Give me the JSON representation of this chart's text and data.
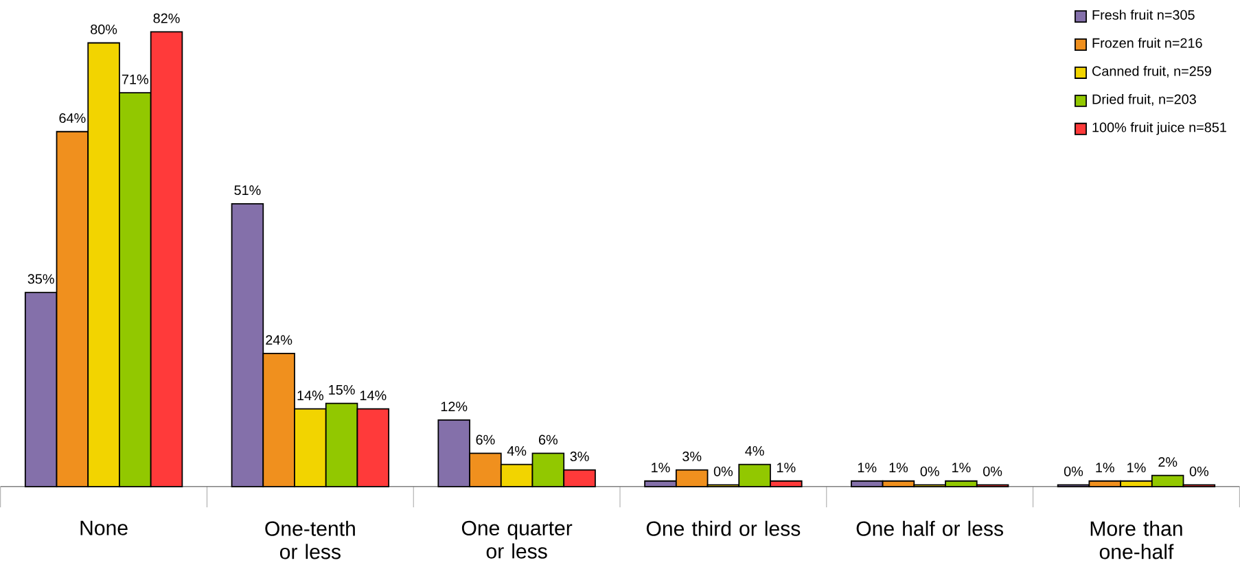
{
  "chart_data": {
    "type": "bar",
    "relative": false,
    "categories": [
      "None",
      "One-tenth or less",
      "One quarter or less",
      "One third or less",
      "One half or less",
      "More than one-half"
    ],
    "series": [
      {
        "name": "Fresh fruit n=305",
        "color": "#8470aa",
        "values": [
          35,
          51,
          12,
          1,
          1,
          0.3
        ],
        "value_labels": [
          "35%",
          "51%",
          "12%",
          "1%",
          "1%",
          "0%"
        ]
      },
      {
        "name": "Frozen fruit n=216",
        "color": "#f0901e",
        "values": [
          64,
          24,
          6,
          3,
          1,
          1
        ],
        "value_labels": [
          "64%",
          "24%",
          "6%",
          "3%",
          "1%",
          "1%"
        ]
      },
      {
        "name": "Canned fruit, n=259",
        "color": "#f2d400",
        "values": [
          80,
          14,
          4,
          0.3,
          0.3,
          1
        ],
        "value_labels": [
          "80%",
          "14%",
          "4%",
          "0%",
          "0%",
          "1%"
        ]
      },
      {
        "name": "Dried fruit, n=203",
        "color": "#92c800",
        "values": [
          71,
          15,
          6,
          4,
          1,
          2
        ],
        "value_labels": [
          "71%",
          "15%",
          "6%",
          "4%",
          "1%",
          "2%"
        ]
      },
      {
        "name": "100% fruit juice n=851",
        "color": "#ff3a3a",
        "values": [
          82,
          14,
          3,
          1,
          0.3,
          0.3
        ],
        "value_labels": [
          "82%",
          "14%",
          "3%",
          "1%",
          "0%",
          "0%"
        ]
      }
    ],
    "legend": "top right",
    "tick_labels": "x"
  }
}
